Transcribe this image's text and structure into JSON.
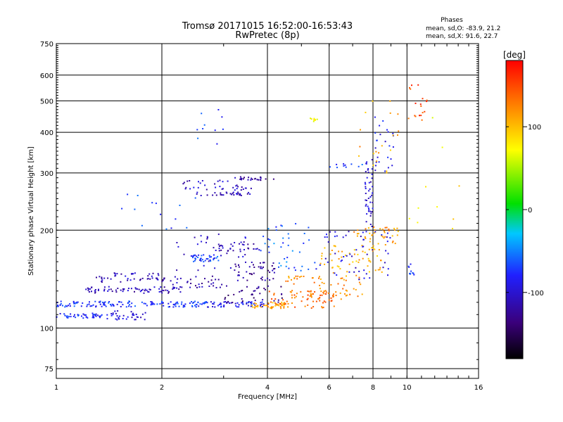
{
  "header": {
    "title_line1": "Tromsø 20171015 16:52:00-16:53:43",
    "title_line2": "RwPretec (8p)",
    "stats_heading": "Phases",
    "stats_o": "mean, sd,O: -83.9, 21.2",
    "stats_x": "mean, sd,X:  91.6, 22.7"
  },
  "colorbar": {
    "unit_label": "[deg]",
    "ticks": [
      "100",
      "0",
      "-100"
    ],
    "tick_values": [
      100,
      0,
      -100
    ],
    "range": [
      -180,
      180
    ],
    "colormap": [
      "#000000",
      "#3a007a",
      "#2020ff",
      "#00c8ff",
      "#00e000",
      "#ffff00",
      "#ff8000",
      "#ff0000"
    ]
  },
  "chart_data": {
    "type": "scatter",
    "xlabel": "Frequency [MHz]",
    "ylabel": "Stationary phase Virtual Height [km]",
    "xscale": "log",
    "yscale": "log",
    "xlim": [
      1,
      16
    ],
    "ylim": [
      70,
      750
    ],
    "xticks": [
      1,
      2,
      4,
      6,
      8,
      10,
      16
    ],
    "xtick_labels": [
      "1",
      "2",
      "4",
      "6",
      "8",
      "10",
      "16"
    ],
    "yticks": [
      75,
      100,
      200,
      300,
      400,
      500,
      600,
      750
    ],
    "ytick_labels": [
      "75",
      "100",
      "200",
      "300",
      "400",
      "500",
      "600",
      "750"
    ],
    "grid": true,
    "clusters": [
      {
        "x": [
          1.0,
          1.35
        ],
        "y": [
          107,
          111
        ],
        "phase": -80,
        "n": 45
      },
      {
        "x": [
          1.35,
          1.8
        ],
        "y": [
          106,
          113
        ],
        "phase": -100,
        "n": 35
      },
      {
        "x": [
          1.0,
          2.7
        ],
        "y": [
          116,
          121
        ],
        "phase": -75,
        "n": 140
      },
      {
        "x": [
          2.7,
          4.0
        ],
        "y": [
          116,
          121
        ],
        "phase": -85,
        "n": 50
      },
      {
        "x": [
          1.2,
          2.3
        ],
        "y": [
          128,
          134
        ],
        "phase": -110,
        "n": 70
      },
      {
        "x": [
          1.3,
          2.0
        ],
        "y": [
          138,
          148
        ],
        "phase": -108,
        "n": 45
      },
      {
        "x": [
          2.0,
          3.0
        ],
        "y": [
          133,
          145
        ],
        "phase": -115,
        "n": 40
      },
      {
        "x": [
          2.4,
          2.9
        ],
        "y": [
          160,
          168
        ],
        "phase": -70,
        "n": 35
      },
      {
        "x": [
          2.2,
          3.8
        ],
        "y": [
          150,
          195
        ],
        "phase": -105,
        "n": 40
      },
      {
        "x": [
          2.8,
          3.8
        ],
        "y": [
          172,
          182
        ],
        "phase": -110,
        "n": 25
      },
      {
        "x": [
          3.2,
          4.2
        ],
        "y": [
          140,
          160
        ],
        "phase": -120,
        "n": 45
      },
      {
        "x": [
          3.0,
          4.5
        ],
        "y": [
          118,
          135
        ],
        "phase": -130,
        "n": 40
      },
      {
        "x": [
          3.6,
          4.6
        ],
        "y": [
          115,
          120
        ],
        "phase": 110,
        "n": 40
      },
      {
        "x": [
          4.0,
          6.5
        ],
        "y": [
          115,
          130
        ],
        "phase": 135,
        "n": 70
      },
      {
        "x": [
          4.5,
          7.5
        ],
        "y": [
          125,
          145
        ],
        "phase": 120,
        "n": 65
      },
      {
        "x": [
          5.5,
          8.5
        ],
        "y": [
          145,
          180
        ],
        "phase": 105,
        "n": 60
      },
      {
        "x": [
          7.0,
          9.5
        ],
        "y": [
          180,
          205
        ],
        "phase": 115,
        "n": 40
      },
      {
        "x": [
          5.5,
          9.0
        ],
        "y": [
          140,
          200
        ],
        "phase": -95,
        "n": 55
      },
      {
        "x": [
          3.8,
          5.5
        ],
        "y": [
          150,
          210
        ],
        "phase": -60,
        "n": 40
      },
      {
        "x": [
          2.5,
          3.6
        ],
        "y": [
          255,
          262
        ],
        "phase": -110,
        "n": 30
      },
      {
        "x": [
          2.3,
          3.6
        ],
        "y": [
          265,
          285
        ],
        "phase": -105,
        "n": 35
      },
      {
        "x": [
          3.2,
          4.3
        ],
        "y": [
          285,
          292
        ],
        "phase": -120,
        "n": 25
      },
      {
        "x": [
          7.6,
          8.0
        ],
        "y": [
          200,
          330
        ],
        "phase": -100,
        "n": 45
      },
      {
        "x": [
          8.0,
          9.2
        ],
        "y": [
          300,
          450
        ],
        "phase": -90,
        "n": 25
      },
      {
        "x": [
          7.0,
          9.5
        ],
        "y": [
          300,
          500
        ],
        "phase": 110,
        "n": 20
      },
      {
        "x": [
          10.0,
          11.5
        ],
        "y": [
          420,
          560
        ],
        "phase": 150,
        "n": 18
      },
      {
        "x": [
          1.5,
          2.5
        ],
        "y": [
          200,
          265
        ],
        "phase": -70,
        "n": 14
      },
      {
        "x": [
          2.5,
          3.0
        ],
        "y": [
          350,
          470
        ],
        "phase": -70,
        "n": 10
      },
      {
        "x": [
          5.2,
          5.6
        ],
        "y": [
          432,
          442
        ],
        "phase": 70,
        "n": 8
      },
      {
        "x": [
          6.0,
          7.5
        ],
        "y": [
          310,
          320
        ],
        "phase": -70,
        "n": 10
      },
      {
        "x": [
          10.0,
          10.5
        ],
        "y": [
          145,
          160
        ],
        "phase": -80,
        "n": 10
      },
      {
        "x": [
          10.0,
          14.5
        ],
        "y": [
          200,
          470
        ],
        "phase": 80,
        "n": 10
      }
    ]
  }
}
